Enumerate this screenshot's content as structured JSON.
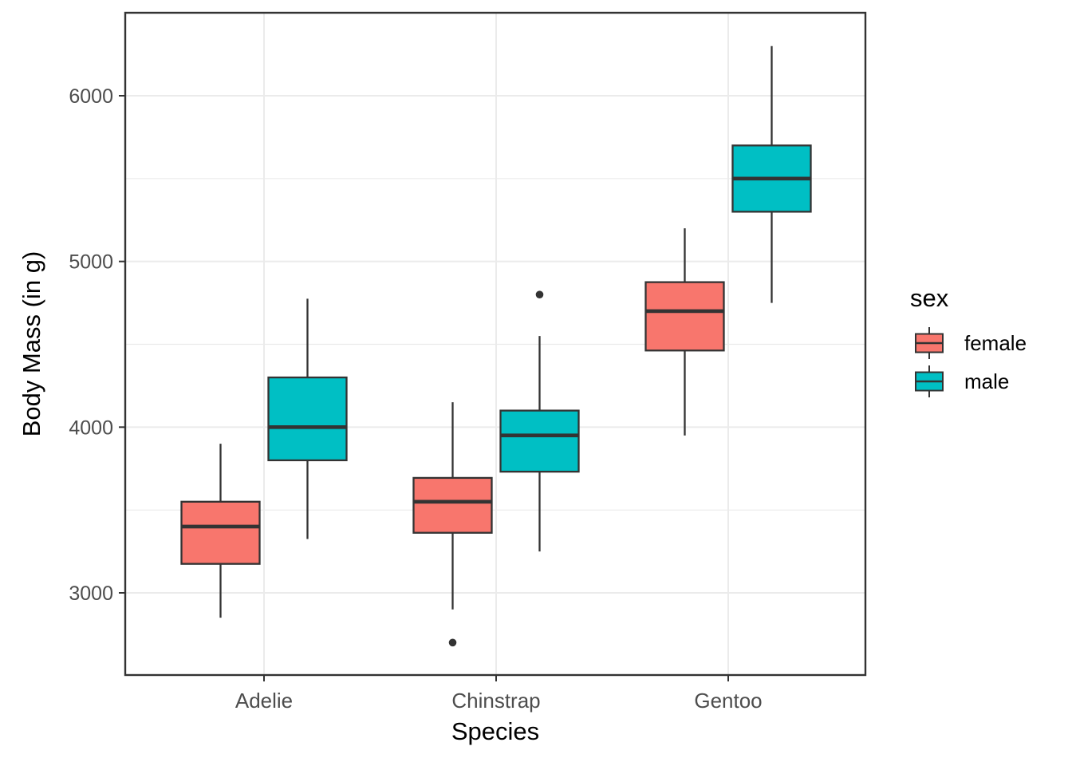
{
  "figure": {
    "background_color": "#FFFFFF"
  },
  "chart_data": {
    "type": "boxplot",
    "title": "",
    "xlabel": "Species",
    "ylabel": "Body Mass (in g)",
    "categories": [
      "Adelie",
      "Chinstrap",
      "Gentoo"
    ],
    "y_ticks": [
      3000,
      4000,
      5000,
      6000
    ],
    "y_minor_gridlines": [
      3500,
      4500,
      5500
    ],
    "ylim": [
      2500,
      6500
    ],
    "grid": true,
    "legend": {
      "title": "sex",
      "position": "right",
      "entries": [
        {
          "label": "female",
          "color": "#F8766D"
        },
        {
          "label": "male",
          "color": "#00BFC4"
        }
      ]
    },
    "series": [
      {
        "name": "female",
        "color": "#F8766D",
        "boxes": [
          {
            "category": "Adelie",
            "whisker_low": 2850,
            "q1": 3175,
            "median": 3400,
            "q3": 3550,
            "whisker_high": 3900,
            "outliers": []
          },
          {
            "category": "Chinstrap",
            "whisker_low": 2900,
            "q1": 3362.5,
            "median": 3550,
            "q3": 3693.75,
            "whisker_high": 4150,
            "outliers": [
              2700
            ]
          },
          {
            "category": "Gentoo",
            "whisker_low": 3950,
            "q1": 4462.5,
            "median": 4700,
            "q3": 4875,
            "whisker_high": 5200,
            "outliers": []
          }
        ]
      },
      {
        "name": "male",
        "color": "#00BFC4",
        "boxes": [
          {
            "category": "Adelie",
            "whisker_low": 3325,
            "q1": 3800,
            "median": 4000,
            "q3": 4300,
            "whisker_high": 4775,
            "outliers": []
          },
          {
            "category": "Chinstrap",
            "whisker_low": 3250,
            "q1": 3731.25,
            "median": 3950,
            "q3": 4100,
            "whisker_high": 4550,
            "outliers": [
              4800
            ]
          },
          {
            "category": "Gentoo",
            "whisker_low": 4750,
            "q1": 5300,
            "median": 5500,
            "q3": 5700,
            "whisker_high": 6300,
            "outliers": []
          }
        ]
      }
    ],
    "style": {
      "box_border_color": "#333333",
      "median_color": "#333333",
      "whisker_color": "#333333",
      "outlier_color": "#333333",
      "grid_color": "#EBEBEB",
      "panel_border_color": "#333333",
      "panel_background": "#FFFFFF",
      "tick_color": "#333333",
      "tick_label_color": "#4D4D4D",
      "axis_title_color": "#000000"
    }
  }
}
